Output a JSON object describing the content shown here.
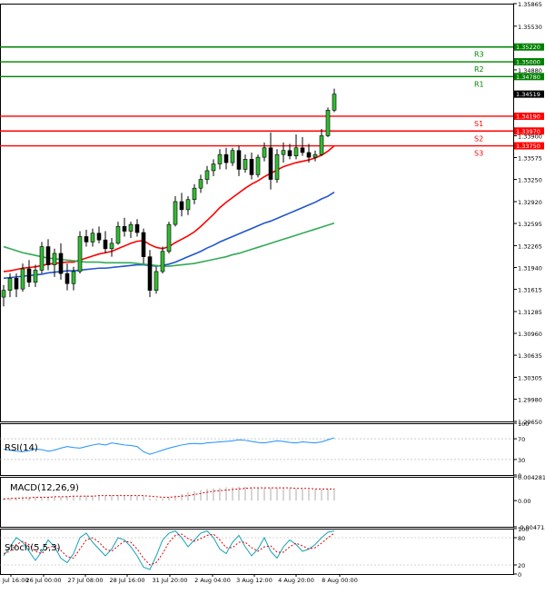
{
  "chart_data": [
    {
      "type": "candlestick",
      "panel": "price",
      "y_ticks": [
        "1.35865",
        "1.35530",
        "1.34880",
        "1.33900",
        "1.33575",
        "1.33250",
        "1.32920",
        "1.32595",
        "1.32265",
        "1.31940",
        "1.31615",
        "1.31285",
        "1.30960",
        "1.30635",
        "1.30305",
        "1.29980",
        "1.29650"
      ],
      "ylim": [
        1.2965,
        1.35865
      ],
      "last_price": "1.34519",
      "levels": [
        {
          "name": "R3",
          "value": 1.3522,
          "label": "1.35220",
          "color": "#008000"
        },
        {
          "name": "R2",
          "value": 1.35,
          "label": "1.35000",
          "color": "#008000"
        },
        {
          "name": "R1",
          "value": 1.3478,
          "label": "1.34780",
          "color": "#008000"
        },
        {
          "name": "S1",
          "value": 1.3419,
          "label": "1.34190",
          "color": "#ff0000"
        },
        {
          "name": "S2",
          "value": 1.3397,
          "label": "1.33970",
          "color": "#ff0000"
        },
        {
          "name": "S3",
          "value": 1.3375,
          "label": "1.33750",
          "color": "#ff0000"
        }
      ],
      "candles": [
        [
          1.315,
          1.3168,
          1.3136,
          1.316
        ],
        [
          1.316,
          1.3185,
          1.315,
          1.3178
        ],
        [
          1.3178,
          1.3185,
          1.315,
          1.3162
        ],
        [
          1.3162,
          1.32,
          1.3158,
          1.3192
        ],
        [
          1.3192,
          1.3205,
          1.3165,
          1.3172
        ],
        [
          1.3172,
          1.3198,
          1.3165,
          1.319
        ],
        [
          1.319,
          1.3232,
          1.3185,
          1.3225
        ],
        [
          1.3225,
          1.3236,
          1.319,
          1.3198
        ],
        [
          1.3198,
          1.3222,
          1.318,
          1.3215
        ],
        [
          1.3215,
          1.323,
          1.3176,
          1.3185
        ],
        [
          1.3185,
          1.32,
          1.316,
          1.317
        ],
        [
          1.317,
          1.3195,
          1.316,
          1.3188
        ],
        [
          1.3188,
          1.3248,
          1.3185,
          1.324
        ],
        [
          1.324,
          1.325,
          1.3225,
          1.3232
        ],
        [
          1.3232,
          1.3252,
          1.3225,
          1.3245
        ],
        [
          1.3245,
          1.3255,
          1.323,
          1.3235
        ],
        [
          1.3235,
          1.3248,
          1.3215,
          1.3222
        ],
        [
          1.3222,
          1.3238,
          1.321,
          1.323
        ],
        [
          1.323,
          1.3262,
          1.3228,
          1.3255
        ],
        [
          1.3255,
          1.3268,
          1.324,
          1.3248
        ],
        [
          1.3248,
          1.3262,
          1.3238,
          1.3258
        ],
        [
          1.3258,
          1.3266,
          1.324,
          1.3246
        ],
        [
          1.3246,
          1.3252,
          1.32,
          1.321
        ],
        [
          1.321,
          1.322,
          1.315,
          1.316
        ],
        [
          1.316,
          1.3195,
          1.3155,
          1.3188
        ],
        [
          1.3188,
          1.3225,
          1.3185,
          1.3218
        ],
        [
          1.3218,
          1.3262,
          1.3215,
          1.3258
        ],
        [
          1.3258,
          1.33,
          1.3255,
          1.3292
        ],
        [
          1.3292,
          1.3305,
          1.327,
          1.328
        ],
        [
          1.328,
          1.33,
          1.3272,
          1.3295
        ],
        [
          1.3295,
          1.3318,
          1.3288,
          1.3312
        ],
        [
          1.3312,
          1.3332,
          1.3305,
          1.3325
        ],
        [
          1.3325,
          1.3345,
          1.3318,
          1.3338
        ],
        [
          1.3338,
          1.3355,
          1.333,
          1.3348
        ],
        [
          1.3348,
          1.337,
          1.334,
          1.3362
        ],
        [
          1.3362,
          1.3372,
          1.334,
          1.335
        ],
        [
          1.335,
          1.3372,
          1.3345,
          1.3368
        ],
        [
          1.3368,
          1.3375,
          1.333,
          1.334
        ],
        [
          1.334,
          1.3362,
          1.3335,
          1.3355
        ],
        [
          1.3355,
          1.3365,
          1.3325,
          1.3332
        ],
        [
          1.3332,
          1.3362,
          1.3328,
          1.3358
        ],
        [
          1.3358,
          1.338,
          1.3352,
          1.3372
        ],
        [
          1.3372,
          1.3395,
          1.331,
          1.3325
        ],
        [
          1.3325,
          1.337,
          1.332,
          1.3362
        ],
        [
          1.3362,
          1.338,
          1.335,
          1.3368
        ],
        [
          1.3368,
          1.3378,
          1.3355,
          1.336
        ],
        [
          1.336,
          1.3392,
          1.3355,
          1.3372
        ],
        [
          1.3372,
          1.3388,
          1.336,
          1.3365
        ],
        [
          1.3365,
          1.3378,
          1.335,
          1.3358
        ],
        [
          1.3358,
          1.3368,
          1.3352,
          1.3362
        ],
        [
          1.3362,
          1.34,
          1.336,
          1.339
        ],
        [
          1.339,
          1.3432,
          1.3388,
          1.3428
        ],
        [
          1.3428,
          1.346,
          1.3425,
          1.34519
        ]
      ],
      "moving_averages": [
        {
          "color": "#ff0000",
          "values": [
            1.3188,
            1.3189,
            1.3191,
            1.3193,
            1.3194,
            1.3195,
            1.3197,
            1.3199,
            1.32,
            1.3201,
            1.3202,
            1.3202,
            1.3205,
            1.3208,
            1.3211,
            1.3214,
            1.3216,
            1.3218,
            1.3222,
            1.3226,
            1.323,
            1.3233,
            1.3234,
            1.3228,
            1.3224,
            1.3222,
            1.3225,
            1.3231,
            1.3236,
            1.3241,
            1.3247,
            1.3255,
            1.3264,
            1.3273,
            1.3283,
            1.3291,
            1.3298,
            1.3305,
            1.3312,
            1.3318,
            1.3323,
            1.3329,
            1.3334,
            1.3339,
            1.3344,
            1.3347,
            1.335,
            1.3352,
            1.3354,
            1.3357,
            1.3361,
            1.3367,
            1.3375
          ]
        },
        {
          "color": "#2255cc",
          "values": [
            1.3178,
            1.3179,
            1.318,
            1.3181,
            1.3182,
            1.3183,
            1.3184,
            1.3186,
            1.3187,
            1.3188,
            1.3189,
            1.3189,
            1.319,
            1.3191,
            1.3192,
            1.3193,
            1.3193,
            1.3194,
            1.3195,
            1.3196,
            1.3197,
            1.3198,
            1.3198,
            1.3197,
            1.3196,
            1.3197,
            1.3199,
            1.3202,
            1.3206,
            1.321,
            1.3214,
            1.3218,
            1.3223,
            1.3227,
            1.3232,
            1.3236,
            1.324,
            1.3244,
            1.3248,
            1.3252,
            1.3256,
            1.326,
            1.3263,
            1.3267,
            1.3271,
            1.3275,
            1.3279,
            1.3283,
            1.3287,
            1.3291,
            1.3296,
            1.33,
            1.3306
          ]
        },
        {
          "color": "#33aa55",
          "values": [
            1.3225,
            1.3222,
            1.3219,
            1.3216,
            1.3214,
            1.3212,
            1.321,
            1.3208,
            1.3207,
            1.3206,
            1.3205,
            1.3204,
            1.3203,
            1.3202,
            1.3202,
            1.3202,
            1.3201,
            1.3201,
            1.3201,
            1.3201,
            1.3201,
            1.32,
            1.3199,
            1.3198,
            1.3197,
            1.3196,
            1.3196,
            1.3197,
            1.3198,
            1.3199,
            1.32,
            1.3202,
            1.3204,
            1.3206,
            1.3208,
            1.321,
            1.3213,
            1.3215,
            1.3218,
            1.3221,
            1.3224,
            1.3227,
            1.323,
            1.3233,
            1.3236,
            1.3239,
            1.3242,
            1.3245,
            1.3248,
            1.3251,
            1.3254,
            1.3257,
            1.326
          ]
        }
      ]
    },
    {
      "type": "line",
      "panel": "indicator",
      "label": "RSI(14)",
      "y_ticks": [
        "100",
        "70",
        "30",
        "0"
      ],
      "ylim": [
        0,
        100
      ],
      "values": [
        50,
        48,
        46,
        45,
        47,
        50,
        49,
        46,
        48,
        52,
        55,
        53,
        52,
        55,
        58,
        60,
        58,
        62,
        60,
        58,
        57,
        55,
        45,
        40,
        44,
        48,
        52,
        55,
        58,
        60,
        61,
        60,
        62,
        63,
        64,
        65,
        66,
        68,
        67,
        65,
        63,
        62,
        64,
        66,
        65,
        63,
        62,
        64,
        63,
        62,
        64,
        68,
        72
      ]
    },
    {
      "type": "histogram",
      "panel": "indicator",
      "label": "MACD(12,26,9)",
      "y_ticks": [
        "0.004281",
        "0.00",
        "-0.004713"
      ],
      "ylim": [
        -0.004713,
        0.004281
      ],
      "values": [
        0.0004,
        0.0004,
        0.0005,
        0.0005,
        0.0006,
        0.0006,
        0.0006,
        0.0007,
        0.0007,
        0.0007,
        0.0008,
        0.0008,
        0.0008,
        0.0009,
        0.0009,
        0.0009,
        0.0009,
        0.001,
        0.001,
        0.001,
        0.001,
        0.0009,
        0.0008,
        0.0004,
        0.0003,
        0.0004,
        0.0006,
        0.0009,
        0.0012,
        0.0015,
        0.0017,
        0.0019,
        0.0021,
        0.0022,
        0.0023,
        0.0024,
        0.0024,
        0.0025,
        0.0025,
        0.0024,
        0.0024,
        0.0023,
        0.0023,
        0.0023,
        0.0022,
        0.0022,
        0.0021,
        0.0021,
        0.002,
        0.002,
        0.002,
        0.0021,
        0.0022
      ],
      "signal": [
        0.0003,
        0.0004,
        0.0004,
        0.0005,
        0.0005,
        0.0006,
        0.0006,
        0.0006,
        0.0007,
        0.0007,
        0.0007,
        0.0008,
        0.0008,
        0.0008,
        0.0008,
        0.0009,
        0.0009,
        0.0009,
        0.0009,
        0.0009,
        0.0009,
        0.0009,
        0.0009,
        0.0008,
        0.0007,
        0.0006,
        0.0006,
        0.0007,
        0.0008,
        0.0009,
        0.0011,
        0.0013,
        0.0015,
        0.0017,
        0.0018,
        0.0019,
        0.002,
        0.0021,
        0.0022,
        0.0023,
        0.0023,
        0.0023,
        0.0023,
        0.0023,
        0.0023,
        0.0023,
        0.0022,
        0.0022,
        0.0022,
        0.0021,
        0.0021,
        0.0021,
        0.0021
      ]
    },
    {
      "type": "line",
      "panel": "indicator",
      "label": "Stoch(5,5,3)",
      "y_ticks": [
        "100",
        "80",
        "20",
        "0"
      ],
      "ylim": [
        0,
        100
      ],
      "main": [
        40,
        60,
        80,
        70,
        50,
        30,
        50,
        75,
        60,
        35,
        25,
        45,
        80,
        90,
        70,
        55,
        40,
        55,
        80,
        75,
        60,
        40,
        15,
        10,
        40,
        75,
        90,
        95,
        80,
        60,
        75,
        90,
        95,
        80,
        55,
        45,
        70,
        85,
        60,
        40,
        55,
        80,
        50,
        35,
        60,
        75,
        65,
        50,
        55,
        65,
        80,
        92,
        95
      ],
      "signal": [
        45,
        50,
        65,
        72,
        65,
        50,
        45,
        58,
        62,
        52,
        38,
        35,
        55,
        75,
        80,
        70,
        55,
        50,
        62,
        72,
        70,
        55,
        35,
        20,
        25,
        45,
        70,
        85,
        88,
        78,
        72,
        78,
        85,
        88,
        75,
        58,
        58,
        70,
        70,
        58,
        50,
        60,
        62,
        48,
        48,
        60,
        68,
        62,
        55,
        58,
        68,
        80,
        90
      ]
    }
  ],
  "x_axis": {
    "labels": [
      "23 Jul 16:00",
      "26 Jul 00:00",
      "27 Jul 08:00",
      "28 Jul 16:00",
      "31 Jul 20:00",
      "2 Aug 04:00",
      "3 Aug 12:00",
      "4 Aug 20:00",
      "8 Aug 00:00"
    ]
  }
}
